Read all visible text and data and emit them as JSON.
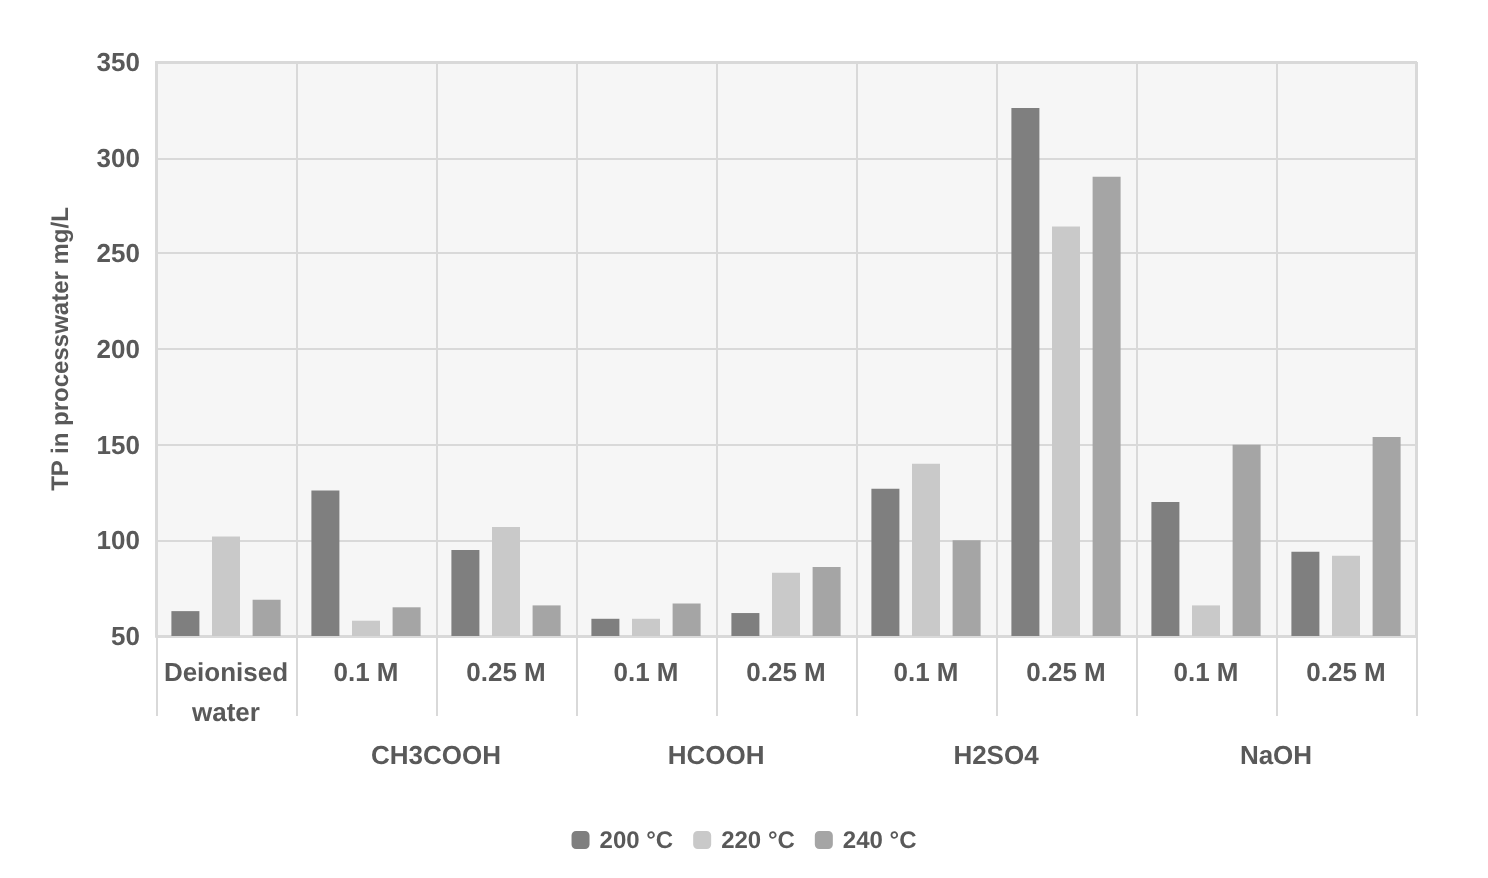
{
  "chart_data": {
    "type": "bar",
    "ylabel": "TP in processwater mg/L",
    "categories": [
      "Deionised water",
      "0.1 M",
      "0.25 M",
      "0.1 M",
      "0.25 M",
      "0.1 M",
      "0.25 M",
      "0.1 M",
      "0.25 M"
    ],
    "series": [
      {
        "name": "200 °C",
        "color": "#7f7f7f",
        "values": [
          63,
          126,
          95,
          59,
          62,
          127,
          326,
          120,
          94
        ]
      },
      {
        "name": "220 °C",
        "color": "#c9c9c9",
        "values": [
          102,
          58,
          107,
          59,
          83,
          140,
          264,
          66,
          92
        ]
      },
      {
        "name": "240 °C",
        "color": "#a5a5a5",
        "values": [
          69,
          65,
          66,
          67,
          86,
          100,
          290,
          150,
          154
        ]
      }
    ],
    "annotations": [
      "CH3COOH",
      "HCOOH",
      "H2SO4",
      "NaOH"
    ],
    "ylim": [
      50,
      350
    ],
    "yticks": [
      50,
      100,
      150,
      200,
      250,
      300,
      350
    ],
    "grid": true,
    "legend": "bottom"
  }
}
